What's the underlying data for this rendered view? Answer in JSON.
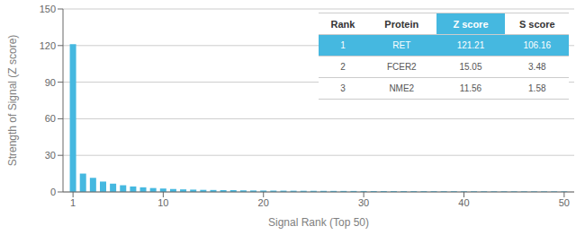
{
  "chart_data": {
    "type": "bar",
    "xlabel": "Signal Rank (Top 50)",
    "ylabel": "Strength of Signal (Z score)",
    "x": [
      1,
      2,
      3,
      4,
      5,
      6,
      7,
      8,
      9,
      10,
      11,
      12,
      13,
      14,
      15,
      16,
      17,
      18,
      19,
      20,
      21,
      22,
      23,
      24,
      25,
      26,
      27,
      28,
      29,
      30,
      31,
      32,
      33,
      34,
      35,
      36,
      37,
      38,
      39,
      40,
      41,
      42,
      43,
      44,
      45,
      46,
      47,
      48,
      49,
      50
    ],
    "values": [
      121.21,
      15.05,
      11.56,
      8.5,
      6.8,
      5.5,
      4.5,
      3.8,
      3.2,
      2.8,
      2.4,
      2.1,
      1.9,
      1.7,
      1.6,
      1.5,
      1.4,
      1.3,
      1.2,
      1.15,
      1.1,
      1.05,
      1.0,
      0.95,
      0.92,
      0.88,
      0.85,
      0.82,
      0.8,
      0.77,
      0.75,
      0.73,
      0.71,
      0.69,
      0.67,
      0.65,
      0.64,
      0.62,
      0.61,
      0.59,
      0.58,
      0.57,
      0.55,
      0.54,
      0.53,
      0.52,
      0.51,
      0.5,
      0.49,
      0.48
    ],
    "color": "#45B8E0",
    "xlim": [
      0,
      51
    ],
    "xticks": [
      1,
      10,
      20,
      30,
      40,
      50
    ],
    "ylim": [
      0,
      150
    ],
    "yticks": [
      0,
      30,
      60,
      90,
      120,
      150
    ],
    "grid": true,
    "table": {
      "headers": [
        "Rank",
        "Protein",
        "Z score",
        "S score"
      ],
      "rows": [
        [
          "1",
          "RET",
          "121.21",
          "106.16"
        ],
        [
          "2",
          "FCER2",
          "15.05",
          "3.48"
        ],
        [
          "3",
          "NME2",
          "11.56",
          "1.58"
        ]
      ]
    }
  }
}
